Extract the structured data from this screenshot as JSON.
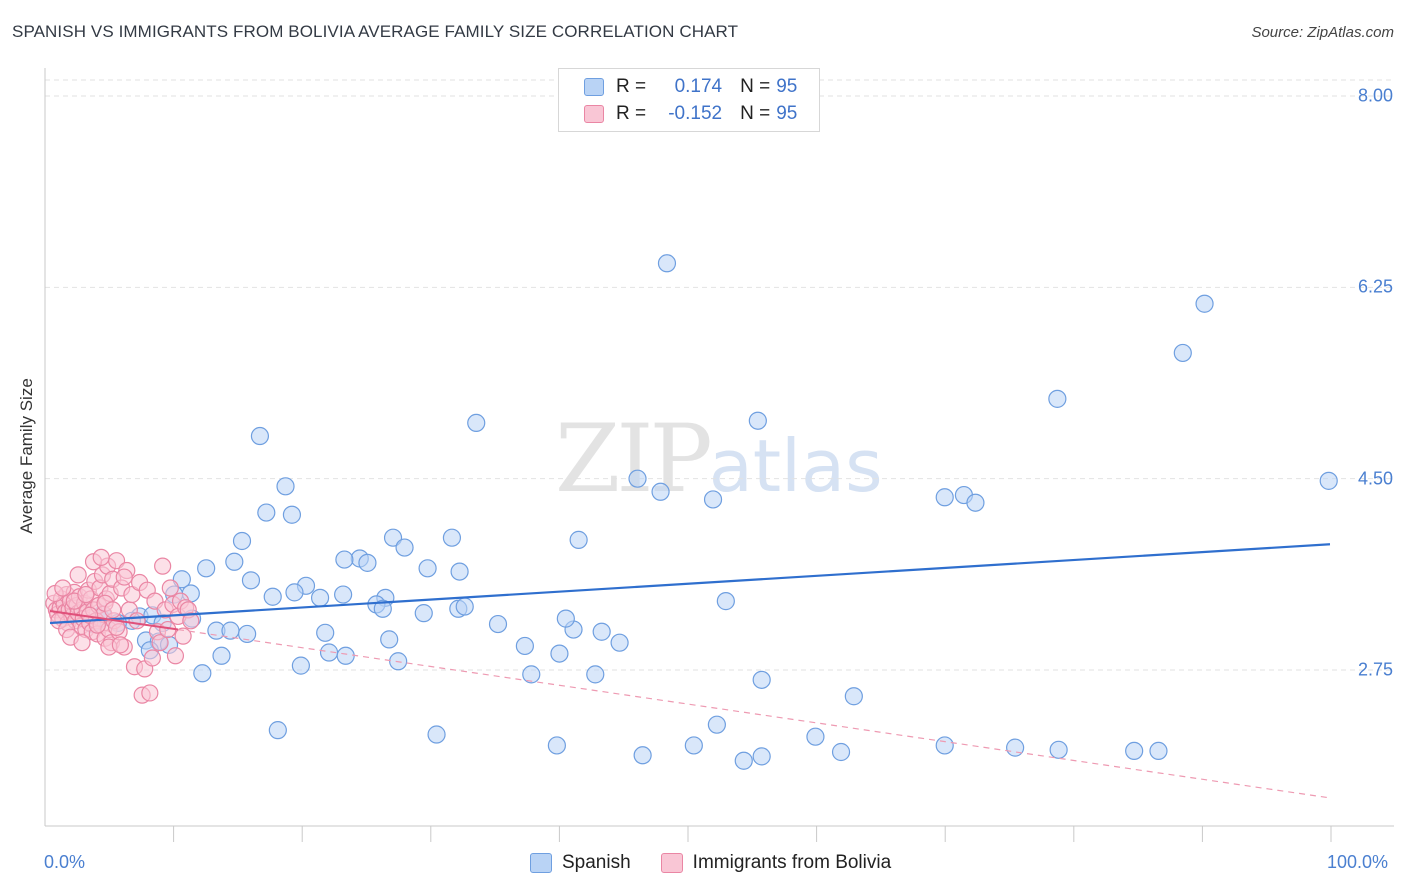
{
  "header": {
    "title": "SPANISH VS IMMIGRANTS FROM BOLIVIA AVERAGE FAMILY SIZE CORRELATION CHART",
    "source": "Source: ZipAtlas.com"
  },
  "watermark": {
    "zip": "ZIP",
    "atlas": "atlas"
  },
  "legend": {
    "rows": [
      {
        "r_label": "R = ",
        "r_value": "0.174",
        "n_label": "N = ",
        "n_value": "95",
        "fill": "#b9d3f5",
        "stroke": "#6f9fe0"
      },
      {
        "r_label": "R = ",
        "r_value": "-0.152",
        "n_label": "N = ",
        "n_value": "95",
        "fill": "#f9c6d5",
        "stroke": "#ea86a4"
      }
    ]
  },
  "bottom_legend": [
    {
      "label": "Spanish",
      "fill": "#b9d3f5",
      "stroke": "#6f9fe0"
    },
    {
      "label": "Immigrants from Bolivia",
      "fill": "#f9c6d5",
      "stroke": "#ea86a4"
    }
  ],
  "chart_data": {
    "type": "scatter",
    "title": "SPANISH VS IMMIGRANTS FROM BOLIVIA AVERAGE FAMILY SIZE CORRELATION CHART",
    "xlabel": "",
    "ylabel": "Average Family Size",
    "xlim": [
      0,
      100
    ],
    "ylim": [
      1.33,
      8.2
    ],
    "x_tick_labels": [
      "0.0%",
      "100.0%"
    ],
    "y_ticks": [
      2.75,
      4.5,
      6.25,
      8.0
    ],
    "y_tick_labels": [
      "2.75",
      "4.50",
      "6.25",
      "8.00"
    ],
    "grid": true,
    "series": [
      {
        "name": "Spanish",
        "color": "#6f9fe0",
        "fill": "#b9d3f5",
        "trend": {
          "x": [
            0,
            100
          ],
          "y": [
            3.18,
            3.9
          ]
        },
        "points": [
          [
            48.2,
            6.47
          ],
          [
            90.2,
            6.1
          ],
          [
            88.5,
            5.65
          ],
          [
            78.7,
            5.23
          ],
          [
            55.3,
            5.03
          ],
          [
            33.3,
            5.01
          ],
          [
            16.4,
            4.89
          ],
          [
            99.9,
            4.48
          ],
          [
            45.9,
            4.5
          ],
          [
            47.7,
            4.38
          ],
          [
            69.9,
            4.33
          ],
          [
            71.4,
            4.35
          ],
          [
            72.3,
            4.28
          ],
          [
            51.8,
            4.31
          ],
          [
            18.4,
            4.43
          ],
          [
            16.9,
            4.19
          ],
          [
            18.9,
            4.17
          ],
          [
            15.0,
            3.93
          ],
          [
            31.4,
            3.96
          ],
          [
            26.8,
            3.96
          ],
          [
            41.3,
            3.94
          ],
          [
            27.7,
            3.87
          ],
          [
            14.4,
            3.74
          ],
          [
            24.2,
            3.77
          ],
          [
            24.8,
            3.73
          ],
          [
            23.0,
            3.76
          ],
          [
            12.2,
            3.68
          ],
          [
            29.5,
            3.68
          ],
          [
            32.0,
            3.65
          ],
          [
            10.3,
            3.58
          ],
          [
            15.7,
            3.57
          ],
          [
            20.0,
            3.52
          ],
          [
            11.0,
            3.45
          ],
          [
            9.7,
            3.44
          ],
          [
            17.4,
            3.42
          ],
          [
            19.1,
            3.46
          ],
          [
            26.2,
            3.41
          ],
          [
            21.1,
            3.41
          ],
          [
            22.9,
            3.44
          ],
          [
            25.5,
            3.35
          ],
          [
            31.9,
            3.31
          ],
          [
            32.4,
            3.33
          ],
          [
            52.8,
            3.38
          ],
          [
            26.0,
            3.31
          ],
          [
            29.2,
            3.27
          ],
          [
            7.0,
            3.24
          ],
          [
            8.0,
            3.25
          ],
          [
            4.1,
            3.26
          ],
          [
            11.1,
            3.22
          ],
          [
            6.4,
            3.2
          ],
          [
            4.0,
            3.22
          ],
          [
            3.3,
            3.17
          ],
          [
            5.3,
            3.18
          ],
          [
            8.8,
            3.18
          ],
          [
            35.0,
            3.17
          ],
          [
            40.9,
            3.12
          ],
          [
            13.0,
            3.11
          ],
          [
            14.1,
            3.11
          ],
          [
            21.5,
            3.09
          ],
          [
            15.4,
            3.08
          ],
          [
            26.5,
            3.03
          ],
          [
            37.1,
            2.97
          ],
          [
            7.5,
            3.02
          ],
          [
            8.5,
            3.01
          ],
          [
            9.3,
            2.98
          ],
          [
            7.8,
            2.93
          ],
          [
            13.4,
            2.88
          ],
          [
            21.8,
            2.91
          ],
          [
            23.1,
            2.88
          ],
          [
            27.2,
            2.83
          ],
          [
            19.6,
            2.79
          ],
          [
            11.9,
            2.72
          ],
          [
            37.6,
            2.71
          ],
          [
            42.6,
            2.71
          ],
          [
            55.6,
            2.66
          ],
          [
            62.8,
            2.51
          ],
          [
            17.8,
            2.2
          ],
          [
            30.2,
            2.16
          ],
          [
            52.1,
            2.25
          ],
          [
            39.6,
            2.06
          ],
          [
            59.8,
            2.14
          ],
          [
            69.9,
            2.06
          ],
          [
            78.8,
            2.02
          ],
          [
            84.7,
            2.01
          ],
          [
            86.6,
            2.01
          ],
          [
            75.4,
            2.04
          ],
          [
            61.8,
            2.0
          ],
          [
            46.3,
            1.97
          ],
          [
            50.3,
            2.06
          ],
          [
            54.2,
            1.92
          ],
          [
            55.6,
            1.96
          ],
          [
            40.3,
            3.22
          ],
          [
            43.1,
            3.1
          ],
          [
            44.5,
            3.0
          ],
          [
            39.8,
            2.9
          ]
        ]
      },
      {
        "name": "Immigrants from Bolivia",
        "color": "#ea86a4",
        "fill": "#f9c6d5",
        "trend": {
          "x": [
            0,
            10
          ],
          "y": [
            3.29,
            3.12
          ]
        },
        "trend_ext": {
          "x": [
            10,
            100
          ],
          "y": [
            3.12,
            1.58
          ]
        },
        "points": [
          [
            0.3,
            3.36
          ],
          [
            0.5,
            3.3
          ],
          [
            0.6,
            3.26
          ],
          [
            0.8,
            3.32
          ],
          [
            0.9,
            3.4
          ],
          [
            1.0,
            3.22
          ],
          [
            1.1,
            3.35
          ],
          [
            1.2,
            3.28
          ],
          [
            1.3,
            3.44
          ],
          [
            1.4,
            3.18
          ],
          [
            1.5,
            3.3
          ],
          [
            1.6,
            3.38
          ],
          [
            1.7,
            3.24
          ],
          [
            1.8,
            3.32
          ],
          [
            1.9,
            3.46
          ],
          [
            2.0,
            3.2
          ],
          [
            2.1,
            3.34
          ],
          [
            2.2,
            3.27
          ],
          [
            2.3,
            3.42
          ],
          [
            2.4,
            3.15
          ],
          [
            2.5,
            3.3
          ],
          [
            2.6,
            3.22
          ],
          [
            2.7,
            3.36
          ],
          [
            2.8,
            3.12
          ],
          [
            2.9,
            3.28
          ],
          [
            3.0,
            3.48
          ],
          [
            3.1,
            3.18
          ],
          [
            3.2,
            3.4
          ],
          [
            3.3,
            3.1
          ],
          [
            3.4,
            3.3
          ],
          [
            3.5,
            3.56
          ],
          [
            3.6,
            3.2
          ],
          [
            3.7,
            3.08
          ],
          [
            3.8,
            3.34
          ],
          [
            3.9,
            3.5
          ],
          [
            4.0,
            3.16
          ],
          [
            4.1,
            3.62
          ],
          [
            4.2,
            3.26
          ],
          [
            4.3,
            3.04
          ],
          [
            4.4,
            3.4
          ],
          [
            4.5,
            3.7
          ],
          [
            4.6,
            3.12
          ],
          [
            4.7,
            3.45
          ],
          [
            4.8,
            3.0
          ],
          [
            4.9,
            3.58
          ],
          [
            5.0,
            3.2
          ],
          [
            5.2,
            3.75
          ],
          [
            5.4,
            3.1
          ],
          [
            5.6,
            3.5
          ],
          [
            5.8,
            2.96
          ],
          [
            6.0,
            3.66
          ],
          [
            6.2,
            3.3
          ],
          [
            6.4,
            3.44
          ],
          [
            6.6,
            2.78
          ],
          [
            6.8,
            3.2
          ],
          [
            7.0,
            3.55
          ],
          [
            7.2,
            2.52
          ],
          [
            7.4,
            2.76
          ],
          [
            7.6,
            3.48
          ],
          [
            7.8,
            2.54
          ],
          [
            8.0,
            2.86
          ],
          [
            8.2,
            3.38
          ],
          [
            8.4,
            3.1
          ],
          [
            8.6,
            3.0
          ],
          [
            8.8,
            3.7
          ],
          [
            9.0,
            3.3
          ],
          [
            9.2,
            3.12
          ],
          [
            9.4,
            3.5
          ],
          [
            9.6,
            3.35
          ],
          [
            9.8,
            2.88
          ],
          [
            10.0,
            3.24
          ],
          [
            10.2,
            3.38
          ],
          [
            10.4,
            3.06
          ],
          [
            10.6,
            3.32
          ],
          [
            10.8,
            3.3
          ],
          [
            11.0,
            3.2
          ],
          [
            0.4,
            3.45
          ],
          [
            0.7,
            3.2
          ],
          [
            1.0,
            3.5
          ],
          [
            1.3,
            3.12
          ],
          [
            1.6,
            3.05
          ],
          [
            1.9,
            3.38
          ],
          [
            2.2,
            3.62
          ],
          [
            2.5,
            3.0
          ],
          [
            2.8,
            3.44
          ],
          [
            3.1,
            3.25
          ],
          [
            3.4,
            3.74
          ],
          [
            3.7,
            3.16
          ],
          [
            4.0,
            3.78
          ],
          [
            4.3,
            3.36
          ],
          [
            4.6,
            2.96
          ],
          [
            4.9,
            3.3
          ],
          [
            5.2,
            3.14
          ],
          [
            5.5,
            2.98
          ],
          [
            5.8,
            3.6
          ]
        ]
      }
    ]
  }
}
